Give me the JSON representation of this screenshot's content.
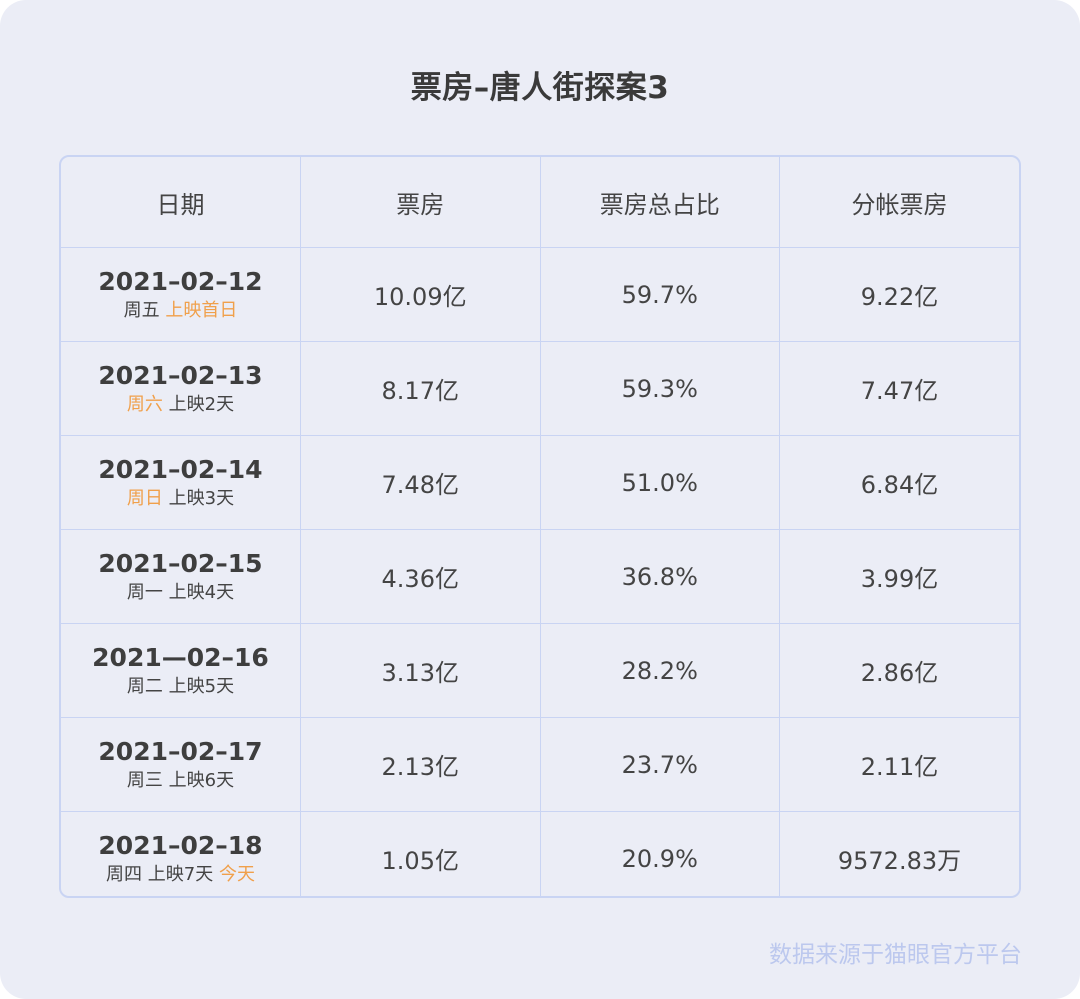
{
  "title": "票房–唐人街探案3",
  "headers": [
    "日期",
    "票房",
    "票房总占比",
    "分帐票房"
  ],
  "rows": [
    {
      "date": "2021–02–12",
      "sub1": "周五",
      "sub2": "上映首日",
      "sub3": "",
      "highlight": "sub2",
      "box": "10.09亿",
      "share": "59.7%",
      "split": "9.22亿"
    },
    {
      "date": "2021–02–13",
      "sub1": "周六",
      "sub2": "上映2天",
      "sub3": "",
      "highlight": "sub1",
      "box": "8.17亿",
      "share": "59.3%",
      "split": "7.47亿"
    },
    {
      "date": "2021–02–14",
      "sub1": "周日",
      "sub2": "上映3天",
      "sub3": "",
      "highlight": "sub1",
      "box": "7.48亿",
      "share": "51.0%",
      "split": "6.84亿"
    },
    {
      "date": "2021–02–15",
      "sub1": "周一",
      "sub2": "上映4天",
      "sub3": "",
      "highlight": "",
      "box": "4.36亿",
      "share": "36.8%",
      "split": "3.99亿"
    },
    {
      "date": "2021—02–16",
      "sub1": "周二",
      "sub2": "上映5天",
      "sub3": "",
      "highlight": "",
      "box": "3.13亿",
      "share": "28.2%",
      "split": "2.86亿"
    },
    {
      "date": "2021–02–17",
      "sub1": "周三",
      "sub2": "上映6天",
      "sub3": "",
      "highlight": "",
      "box": "2.13亿",
      "share": "23.7%",
      "split": "2.11亿"
    },
    {
      "date": "2021–02–18",
      "sub1": "周四",
      "sub2": "上映7天",
      "sub3": "今天",
      "highlight": "sub3",
      "box": "1.05亿",
      "share": "20.9%",
      "split": "9572.83万"
    }
  ],
  "footer": "数据来源于猫眼官方平台",
  "colors": {
    "background": "#ebedf6",
    "border": "#c9d4f3",
    "highlight": "#f0a04b",
    "footer": "#bcc8ee",
    "text": "#444444"
  }
}
